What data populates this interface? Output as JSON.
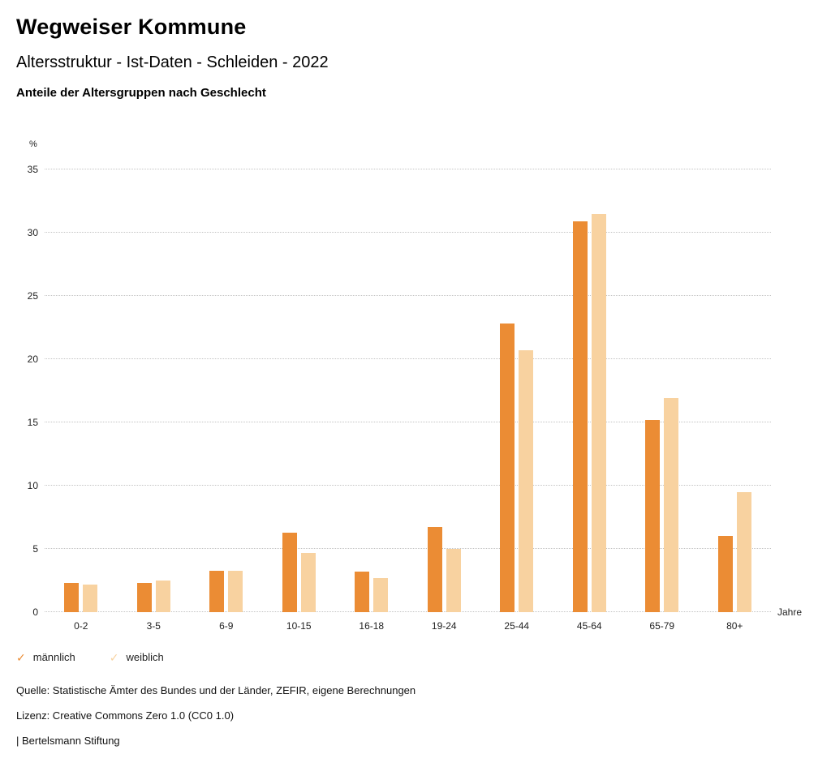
{
  "header": {
    "title": "Wegweiser Kommune",
    "subtitle": "Altersstruktur - Ist-Daten - Schleiden - 2022",
    "chart_heading": "Anteile der Altersgruppen nach Geschlecht"
  },
  "chart_data": {
    "type": "bar",
    "title": "Anteile der Altersgruppen nach Geschlecht",
    "categories": [
      "0-2",
      "3-5",
      "6-9",
      "10-15",
      "16-18",
      "19-24",
      "25-44",
      "45-64",
      "65-79",
      "80+"
    ],
    "series": [
      {
        "name": "männlich",
        "color": "#EB8C34",
        "values": [
          2.3,
          2.3,
          3.3,
          6.3,
          3.2,
          6.7,
          22.8,
          30.9,
          15.2,
          6.0
        ]
      },
      {
        "name": "weiblich",
        "color": "#F8D2A0",
        "values": [
          2.2,
          2.5,
          3.3,
          4.7,
          2.7,
          5.0,
          20.7,
          31.5,
          16.9,
          9.5
        ]
      }
    ],
    "ylabel_unit": "%",
    "xlabel": "Jahre",
    "ylim": [
      0,
      35
    ],
    "ytick_step": 5,
    "grid": "dotted-horizontal",
    "legend_position": "bottom-left"
  },
  "legend": {
    "check_glyph": "✓",
    "items": [
      {
        "label": "männlich",
        "color": "#EB8C34"
      },
      {
        "label": "weiblich",
        "color": "#F8D2A0"
      }
    ]
  },
  "footer": {
    "source": "Quelle: Statistische Ämter des Bundes und der Länder, ZEFIR, eigene Berechnungen",
    "license": "Lizenz: Creative Commons Zero 1.0 (CC0 1.0)",
    "attribution": "| Bertelsmann Stiftung"
  }
}
